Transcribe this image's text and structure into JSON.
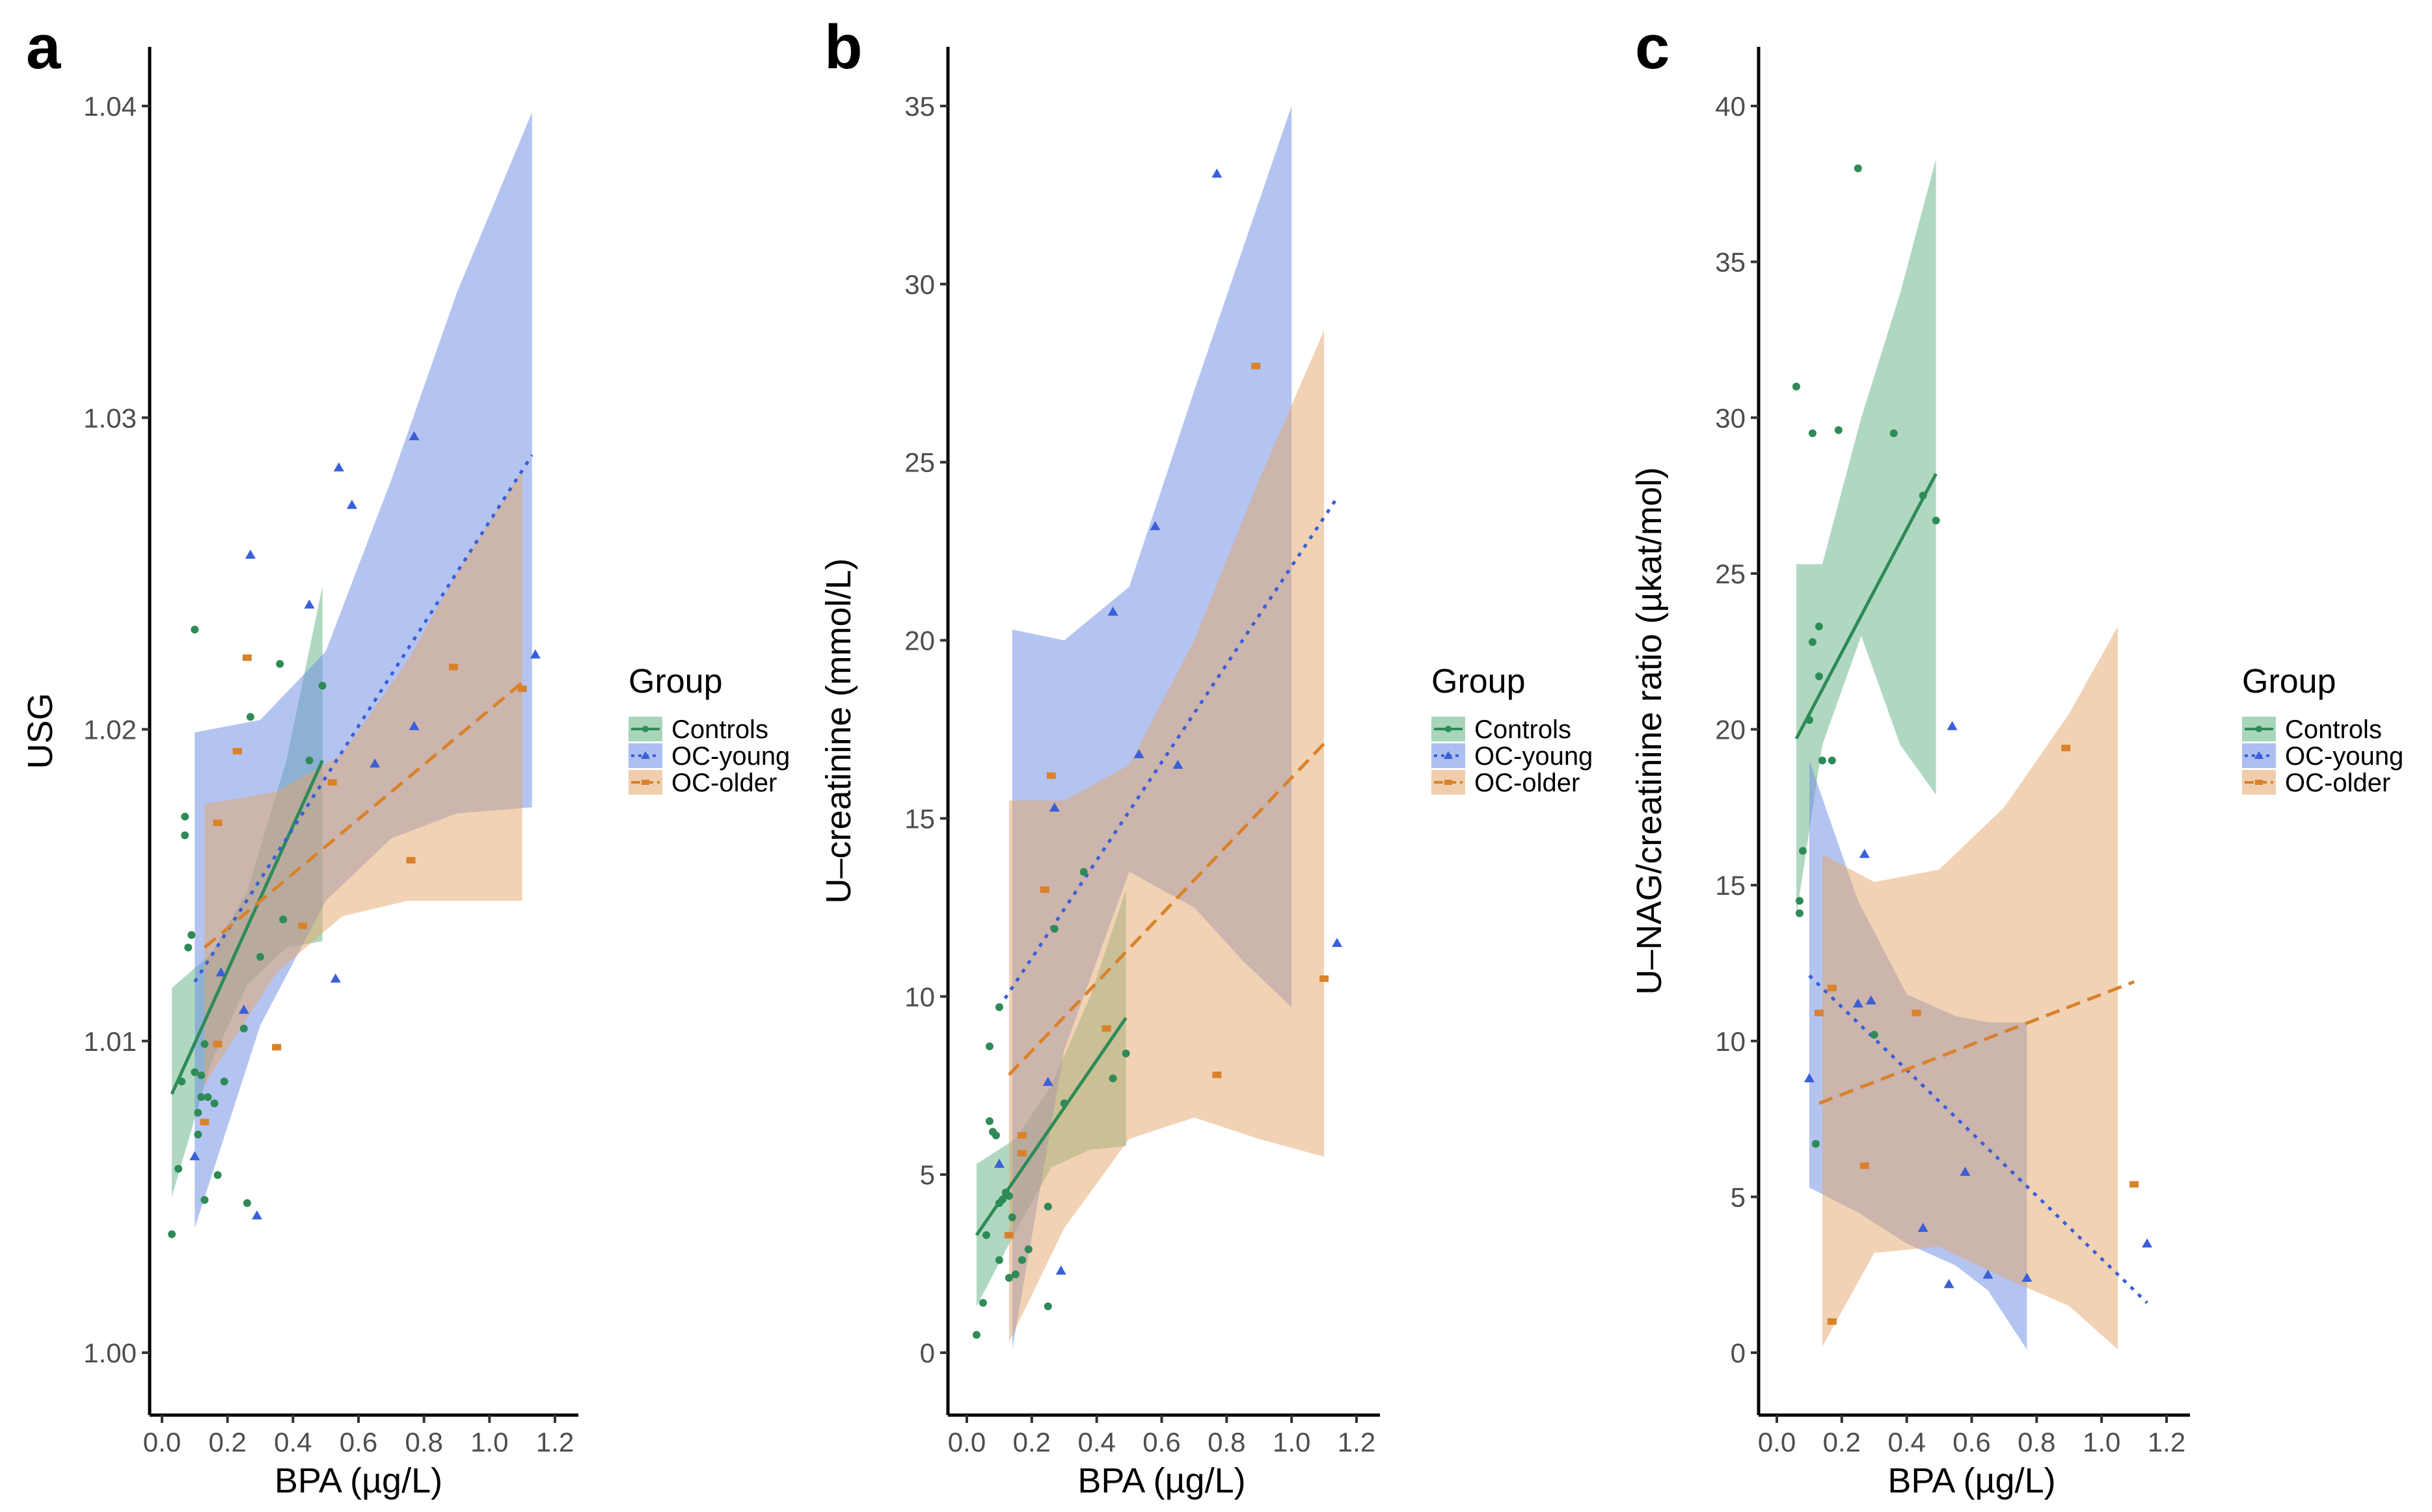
{
  "colors": {
    "Controls": "#2e8b57",
    "OC-young": "#3a5fd8",
    "OC-older": "#d9822b",
    "ribbon_Controls": "#62b283",
    "ribbon_OC-young": "#6a8ae3",
    "ribbon_OC-older": "#e3a56a"
  },
  "legend": {
    "title": "Group",
    "items": [
      "Controls",
      "OC-young",
      "OC-older"
    ]
  },
  "chart_data": [
    {
      "panel": "a",
      "type": "scatter",
      "xlabel": "BPA (µg/L)",
      "ylabel": "USG",
      "xlim": [
        -0.05,
        1.25
      ],
      "ylim": [
        0.998,
        1.042
      ],
      "xticks": [
        0.0,
        0.2,
        0.4,
        0.6,
        0.8,
        1.0,
        1.2
      ],
      "xtick_labels": [
        "0.0",
        "0.2",
        "0.4",
        "0.6",
        "0.8",
        "1.0",
        "1.2"
      ],
      "yticks": [
        1.0,
        1.01,
        1.02,
        1.03,
        1.04
      ],
      "ytick_labels": [
        "1.00",
        "1.01",
        "1.02",
        "1.03",
        "1.04"
      ],
      "series": [
        {
          "name": "Controls",
          "marker": "circle",
          "line": "solid",
          "points": [
            [
              0.03,
              1.0038
            ],
            [
              0.05,
              1.0059
            ],
            [
              0.06,
              1.0087
            ],
            [
              0.07,
              1.0172
            ],
            [
              0.07,
              1.0166
            ],
            [
              0.08,
              1.013
            ],
            [
              0.09,
              1.0134
            ],
            [
              0.1,
              1.0232
            ],
            [
              0.1,
              1.009
            ],
            [
              0.11,
              1.0077
            ],
            [
              0.11,
              1.007
            ],
            [
              0.12,
              1.0082
            ],
            [
              0.12,
              1.0089
            ],
            [
              0.13,
              1.0049
            ],
            [
              0.13,
              1.0099
            ],
            [
              0.14,
              1.0082
            ],
            [
              0.16,
              1.008
            ],
            [
              0.17,
              1.0057
            ],
            [
              0.19,
              1.0087
            ],
            [
              0.25,
              1.0104
            ],
            [
              0.26,
              1.0048
            ],
            [
              0.27,
              1.0204
            ],
            [
              0.3,
              1.0127
            ],
            [
              0.36,
              1.0221
            ],
            [
              0.37,
              1.0139
            ],
            [
              0.45,
              1.019
            ],
            [
              0.49,
              1.0214
            ]
          ],
          "fit": [
            [
              0.03,
              1.0083
            ],
            [
              0.49,
              1.019
            ]
          ],
          "ribbon": [
            [
              0.03,
              1.005,
              1.0117
            ],
            [
              0.15,
              1.0093,
              1.0128
            ],
            [
              0.26,
              1.0118,
              1.0148
            ],
            [
              0.38,
              1.013,
              1.019
            ],
            [
              0.49,
              1.0132,
              1.0246
            ]
          ]
        },
        {
          "name": "OC-young",
          "marker": "triangle",
          "line": "dotted",
          "points": [
            [
              0.1,
              1.0063
            ],
            [
              0.18,
              1.0122
            ],
            [
              0.25,
              1.011
            ],
            [
              0.27,
              1.0256
            ],
            [
              0.29,
              1.0044
            ],
            [
              0.45,
              1.024
            ],
            [
              0.53,
              1.012
            ],
            [
              0.54,
              1.0284
            ],
            [
              0.58,
              1.0272
            ],
            [
              0.65,
              1.0189
            ],
            [
              0.77,
              1.0201
            ],
            [
              0.77,
              1.0294
            ],
            [
              1.14,
              1.0224
            ]
          ],
          "fit": [
            [
              0.1,
              1.0119
            ],
            [
              1.13,
              1.0288
            ]
          ],
          "ribbon": [
            [
              0.1,
              1.004,
              1.0199
            ],
            [
              0.3,
              1.0105,
              1.0203
            ],
            [
              0.5,
              1.0145,
              1.0225
            ],
            [
              0.7,
              1.0165,
              1.028
            ],
            [
              0.9,
              1.0173,
              1.034
            ],
            [
              1.13,
              1.0175,
              1.0398
            ]
          ]
        },
        {
          "name": "OC-older",
          "marker": "square",
          "line": "dashed",
          "points": [
            [
              0.13,
              1.0074
            ],
            [
              0.17,
              1.017
            ],
            [
              0.17,
              1.0099
            ],
            [
              0.23,
              1.0193
            ],
            [
              0.26,
              1.0223
            ],
            [
              0.35,
              1.0098
            ],
            [
              0.43,
              1.0137
            ],
            [
              0.52,
              1.0183
            ],
            [
              0.76,
              1.0158
            ],
            [
              0.89,
              1.022
            ],
            [
              1.1,
              1.0213
            ]
          ],
          "fit": [
            [
              0.13,
              1.013
            ],
            [
              1.1,
              1.0215
            ]
          ],
          "ribbon": [
            [
              0.13,
              1.0086,
              1.0176
            ],
            [
              0.35,
              1.0122,
              1.018
            ],
            [
              0.55,
              1.014,
              1.0192
            ],
            [
              0.75,
              1.0145,
              1.0222
            ],
            [
              0.9,
              1.0145,
              1.025
            ],
            [
              1.1,
              1.0145,
              1.0283
            ]
          ]
        }
      ]
    },
    {
      "panel": "b",
      "type": "scatter",
      "xlabel": "BPA (µg/L)",
      "ylabel": "U–creatinine (mmol/L)",
      "xlim": [
        -0.05,
        1.25
      ],
      "ylim": [
        -1.75,
        36.75
      ],
      "xticks": [
        0.0,
        0.2,
        0.4,
        0.6,
        0.8,
        1.0,
        1.2
      ],
      "xtick_labels": [
        "0.0",
        "0.2",
        "0.4",
        "0.6",
        "0.8",
        "1.0",
        "1.2"
      ],
      "yticks": [
        0,
        5,
        10,
        15,
        20,
        25,
        30,
        35
      ],
      "ytick_labels": [
        "0",
        "5",
        "10",
        "15",
        "20",
        "25",
        "30",
        "35"
      ],
      "series": [
        {
          "name": "Controls",
          "marker": "circle",
          "line": "solid",
          "points": [
            [
              0.03,
              0.5
            ],
            [
              0.05,
              1.4
            ],
            [
              0.06,
              3.3
            ],
            [
              0.07,
              8.6
            ],
            [
              0.07,
              6.5
            ],
            [
              0.08,
              6.2
            ],
            [
              0.09,
              6.1
            ],
            [
              0.1,
              9.7
            ],
            [
              0.1,
              4.2
            ],
            [
              0.1,
              2.6
            ],
            [
              0.11,
              4.3
            ],
            [
              0.12,
              4.5
            ],
            [
              0.13,
              4.4
            ],
            [
              0.13,
              2.1
            ],
            [
              0.14,
              3.8
            ],
            [
              0.15,
              2.2
            ],
            [
              0.17,
              2.6
            ],
            [
              0.19,
              2.9
            ],
            [
              0.25,
              4.1
            ],
            [
              0.25,
              1.3
            ],
            [
              0.27,
              11.9
            ],
            [
              0.3,
              7.0
            ],
            [
              0.36,
              13.5
            ],
            [
              0.45,
              7.7
            ],
            [
              0.49,
              8.4
            ]
          ],
          "fit": [
            [
              0.03,
              3.3
            ],
            [
              0.49,
              9.4
            ]
          ],
          "ribbon": [
            [
              0.03,
              1.3,
              5.3
            ],
            [
              0.15,
              3.4,
              6.0
            ],
            [
              0.26,
              5.2,
              7.5
            ],
            [
              0.38,
              5.7,
              10.0
            ],
            [
              0.49,
              5.8,
              13.0
            ]
          ]
        },
        {
          "name": "OC-young",
          "marker": "triangle",
          "line": "dotted",
          "points": [
            [
              0.1,
              5.3
            ],
            [
              0.25,
              7.6
            ],
            [
              0.27,
              15.3
            ],
            [
              0.29,
              2.3
            ],
            [
              0.45,
              20.8
            ],
            [
              0.53,
              16.8
            ],
            [
              0.58,
              23.2
            ],
            [
              0.65,
              16.5
            ],
            [
              0.77,
              33.1
            ],
            [
              1.14,
              11.5
            ]
          ],
          "fit": [
            [
              0.1,
              9.7
            ],
            [
              1.14,
              24.0
            ]
          ],
          "ribbon": [
            [
              0.14,
              0.1,
              20.3
            ],
            [
              0.3,
              8.5,
              20.0
            ],
            [
              0.5,
              13.5,
              21.5
            ],
            [
              0.7,
              12.5,
              27.0
            ],
            [
              0.85,
              11.0,
              31.0
            ],
            [
              1.0,
              9.7,
              35.0
            ]
          ]
        },
        {
          "name": "OC-older",
          "marker": "square",
          "line": "dashed",
          "points": [
            [
              0.13,
              3.3
            ],
            [
              0.17,
              5.6
            ],
            [
              0.17,
              6.1
            ],
            [
              0.24,
              13.0
            ],
            [
              0.26,
              16.2
            ],
            [
              0.43,
              9.1
            ],
            [
              0.77,
              7.8
            ],
            [
              0.89,
              27.7
            ],
            [
              1.1,
              10.5
            ]
          ],
          "fit": [
            [
              0.13,
              7.8
            ],
            [
              1.1,
              17.1
            ]
          ],
          "ribbon": [
            [
              0.13,
              0.3,
              15.5
            ],
            [
              0.3,
              3.5,
              15.5
            ],
            [
              0.5,
              6.0,
              16.5
            ],
            [
              0.7,
              6.6,
              20.0
            ],
            [
              0.9,
              6.0,
              24.5
            ],
            [
              1.1,
              5.5,
              28.7
            ]
          ]
        }
      ]
    },
    {
      "panel": "c",
      "type": "scatter",
      "xlabel": "BPA (µg/L)",
      "ylabel": "U–NAG/creatinine ratio (µkat/mol)",
      "xlim": [
        -0.05,
        1.25
      ],
      "ylim": [
        -2,
        42
      ],
      "xticks": [
        0.0,
        0.2,
        0.4,
        0.6,
        0.8,
        1.0,
        1.2
      ],
      "xtick_labels": [
        "0.0",
        "0.2",
        "0.4",
        "0.6",
        "0.8",
        "1.0",
        "1.2"
      ],
      "yticks": [
        0,
        5,
        10,
        15,
        20,
        25,
        30,
        35,
        40
      ],
      "ytick_labels": [
        "0",
        "5",
        "10",
        "15",
        "20",
        "25",
        "30",
        "35",
        "40"
      ],
      "series": [
        {
          "name": "Controls",
          "marker": "circle",
          "line": "solid",
          "points": [
            [
              0.06,
              31.0
            ],
            [
              0.07,
              14.5
            ],
            [
              0.07,
              14.1
            ],
            [
              0.08,
              16.1
            ],
            [
              0.1,
              20.3
            ],
            [
              0.11,
              29.5
            ],
            [
              0.11,
              22.8
            ],
            [
              0.12,
              6.7
            ],
            [
              0.13,
              23.3
            ],
            [
              0.13,
              21.7
            ],
            [
              0.14,
              19.0
            ],
            [
              0.17,
              19.0
            ],
            [
              0.19,
              29.6
            ],
            [
              0.25,
              38.0
            ],
            [
              0.3,
              10.2
            ],
            [
              0.36,
              29.5
            ],
            [
              0.45,
              27.5
            ],
            [
              0.49,
              26.7
            ]
          ],
          "fit": [
            [
              0.06,
              19.7
            ],
            [
              0.49,
              28.2
            ]
          ],
          "ribbon": [
            [
              0.06,
              14.0,
              25.3
            ],
            [
              0.14,
              19.5,
              25.3
            ],
            [
              0.26,
              23.0,
              30.0
            ],
            [
              0.38,
              19.5,
              34.0
            ],
            [
              0.49,
              17.9,
              38.3
            ]
          ]
        },
        {
          "name": "OC-young",
          "marker": "triangle",
          "line": "dotted",
          "points": [
            [
              0.1,
              8.8
            ],
            [
              0.25,
              11.2
            ],
            [
              0.27,
              16.0
            ],
            [
              0.29,
              11.3
            ],
            [
              0.45,
              4.0
            ],
            [
              0.53,
              2.2
            ],
            [
              0.54,
              20.1
            ],
            [
              0.58,
              5.8
            ],
            [
              0.65,
              2.5
            ],
            [
              0.77,
              2.4
            ],
            [
              1.14,
              3.5
            ]
          ],
          "fit": [
            [
              0.1,
              12.1
            ],
            [
              1.14,
              1.6
            ]
          ],
          "ribbon": [
            [
              0.1,
              5.3,
              19.0
            ],
            [
              0.25,
              4.5,
              14.5
            ],
            [
              0.4,
              3.5,
              11.5
            ],
            [
              0.55,
              2.8,
              10.8
            ],
            [
              0.65,
              2.0,
              10.6
            ],
            [
              0.77,
              0.1,
              10.6
            ]
          ]
        },
        {
          "name": "OC-older",
          "marker": "square",
          "line": "dashed",
          "points": [
            [
              0.13,
              10.9
            ],
            [
              0.17,
              11.7
            ],
            [
              0.17,
              1.0
            ],
            [
              0.27,
              6.0
            ],
            [
              0.43,
              10.9
            ],
            [
              0.89,
              19.4
            ],
            [
              1.1,
              5.4
            ]
          ],
          "fit": [
            [
              0.13,
              8.0
            ],
            [
              1.1,
              11.9
            ]
          ],
          "ribbon": [
            [
              0.14,
              0.2,
              16.0
            ],
            [
              0.3,
              3.2,
              15.1
            ],
            [
              0.5,
              3.4,
              15.5
            ],
            [
              0.7,
              2.4,
              17.5
            ],
            [
              0.9,
              1.5,
              20.5
            ],
            [
              1.05,
              0.1,
              23.3
            ]
          ]
        }
      ]
    }
  ]
}
